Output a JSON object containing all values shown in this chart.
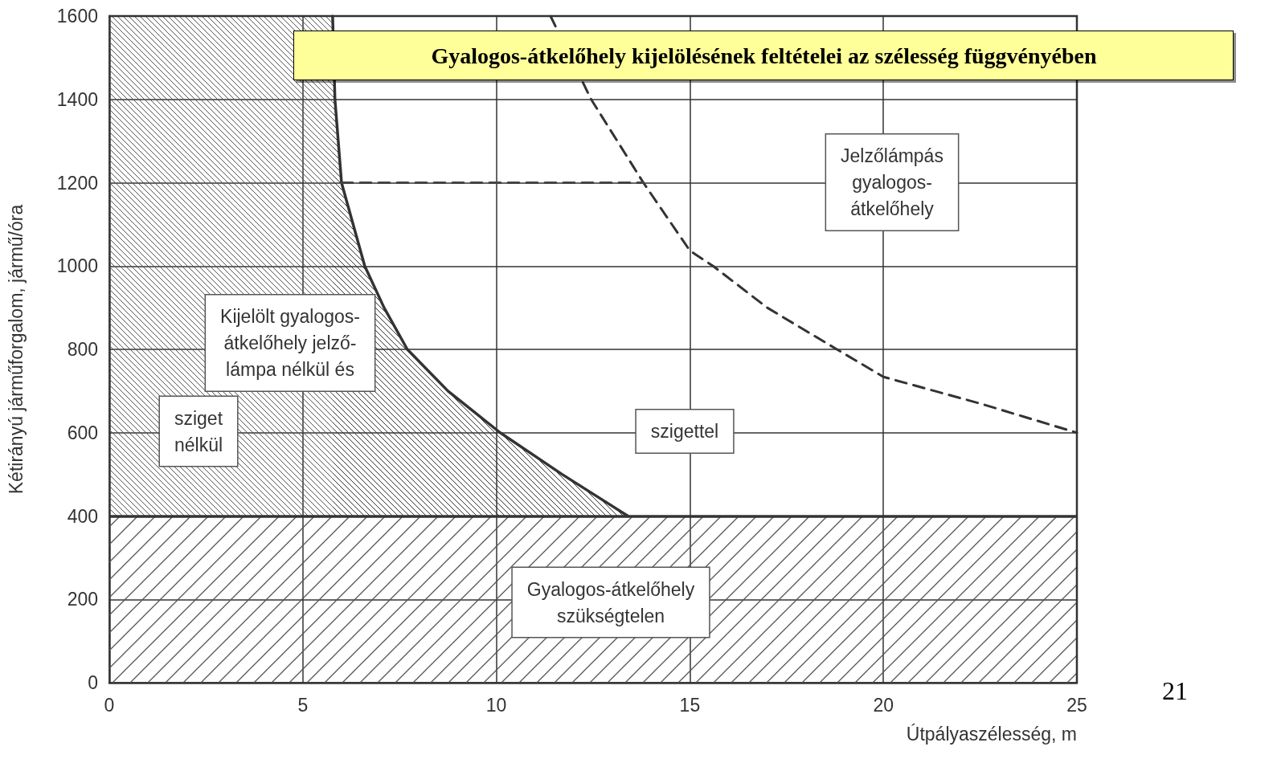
{
  "chart_data": {
    "type": "line",
    "title": "Gyalogos-átkelőhely kijelölésének feltételei az szélesség függvényében",
    "xlabel": "Útpályaszélesség, m",
    "ylabel": "Kétirányú járműforgalom, jármű/óra",
    "xlim": [
      0,
      25
    ],
    "xticks": [
      0,
      5,
      10,
      15,
      20,
      25
    ],
    "ylim": [
      0,
      1600
    ],
    "yticks": [
      0,
      200,
      400,
      600,
      800,
      1000,
      1200,
      1400,
      1600
    ],
    "grid": true,
    "marker": "none",
    "series": [
      {
        "type": "area",
        "color": "#333333",
        "line_style": "solid",
        "x": [
          5.77,
          5.83,
          6.0,
          6.6,
          7.1,
          7.7,
          8.75,
          10.1,
          11.7,
          13.4
        ],
        "values": [
          1600,
          1400,
          1200,
          1000,
          900,
          800,
          700,
          600,
          500,
          400
        ]
      },
      {
        "type": "line",
        "color": "#333333",
        "line_style": "dashed",
        "x": [
          11.4,
          12.45,
          13.8,
          15,
          15.6,
          17,
          18.8,
          20,
          22.5,
          25
        ],
        "values": [
          1600,
          1400,
          1200,
          1037,
          1000,
          900,
          800,
          734,
          670,
          600
        ]
      },
      {
        "type": "line",
        "color": "#444444",
        "line_style": "dashed",
        "x": [
          6.0,
          13.8
        ],
        "values": [
          1200,
          1200
        ]
      }
    ],
    "ref_lines": [
      {
        "axis": "y",
        "value": 400,
        "label": null,
        "color": "#333333",
        "line_style": "solid"
      }
    ],
    "bands": [
      {
        "axis": "y",
        "from": 0,
        "to": 400,
        "label": null,
        "color": "#555555"
      },
      {
        "axis": "x",
        "from": 0,
        "to": 5.77,
        "label": null,
        "color": "#555555"
      }
    ],
    "annotations": [
      "Jelzőlámpás\ngyalogos-\nátkelőhely",
      "Kijelölt gyalogos-\nátkelőhely jelző-\nlámpa nélkül és",
      "szigettel",
      "sziget\nnélkül",
      "Gyalogos-átkelőhely\nszükségtelen",
      "21"
    ]
  }
}
